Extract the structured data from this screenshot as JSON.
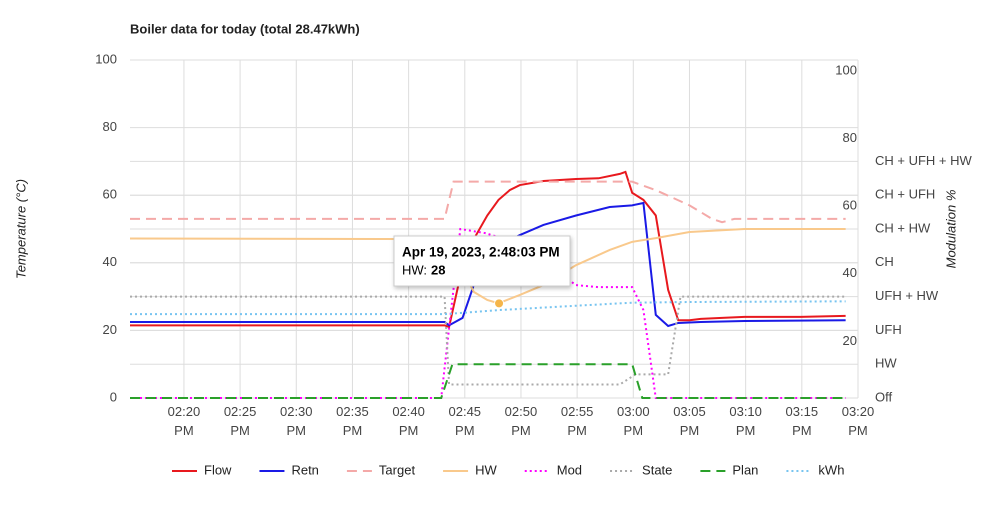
{
  "chart_data": {
    "type": "line",
    "title": "Boiler data for today (total 28.47kWh)",
    "y_label": "Temperature (°C)",
    "y2_label": "Modulation %",
    "xlim": [
      855.2,
      920
    ],
    "xticks": [
      {
        "value": 860,
        "label": "02:20 PM"
      },
      {
        "value": 865,
        "label": "02:25 PM"
      },
      {
        "value": 870,
        "label": "02:30 PM"
      },
      {
        "value": 875,
        "label": "02:35 PM"
      },
      {
        "value": 880,
        "label": "02:40 PM"
      },
      {
        "value": 885,
        "label": "02:45 PM"
      },
      {
        "value": 890,
        "label": "02:50 PM"
      },
      {
        "value": 895,
        "label": "02:55 PM"
      },
      {
        "value": 900,
        "label": "03:00 PM"
      },
      {
        "value": 905,
        "label": "03:05 PM"
      },
      {
        "value": 910,
        "label": "03:10 PM"
      },
      {
        "value": 915,
        "label": "03:15 PM"
      },
      {
        "value": 920,
        "label": "03:20 PM"
      }
    ],
    "ylim": [
      0,
      100
    ],
    "yticks": [
      0,
      20,
      40,
      60,
      80,
      100
    ],
    "y2lim": [
      0,
      100
    ],
    "y2ticks": [
      20,
      40,
      60,
      80,
      100
    ],
    "y3lim": [
      0,
      10
    ],
    "y3ticks": [
      {
        "value": 0,
        "label": "Off"
      },
      {
        "value": 1,
        "label": "HW"
      },
      {
        "value": 2,
        "label": "UFH"
      },
      {
        "value": 3,
        "label": "UFH + HW"
      },
      {
        "value": 4,
        "label": "CH"
      },
      {
        "value": 5,
        "label": "CH + HW"
      },
      {
        "value": 6,
        "label": "CH + UFH"
      },
      {
        "value": 7,
        "label": "CH + UFH + HW"
      }
    ],
    "grid": true,
    "legend": "bottom",
    "series": [
      {
        "name": "Flow",
        "color": "#e8191e",
        "dash": "solid",
        "x": [
          855.2,
          883.2,
          883.6,
          884.8,
          885.8,
          887.0,
          888.0,
          889.0,
          889.9,
          892.0,
          894.9,
          896.9,
          898.8,
          899.3,
          899.9,
          900.9,
          902.0,
          903.1,
          904.0,
          905.0,
          906.0,
          907.9,
          909.9,
          914.9,
          918.9
        ],
        "values": [
          21.5,
          21.5,
          21,
          39,
          47,
          54,
          58.6,
          61.5,
          63,
          64.2,
          64.8,
          65,
          66.3,
          66.9,
          60.7,
          58.6,
          54,
          32,
          23,
          23,
          23.4,
          23.7,
          24,
          24,
          24.3
        ]
      },
      {
        "name": "Retn",
        "color": "#1a1ae6",
        "dash": "solid",
        "x": [
          855.2,
          883.2,
          883.6,
          884.8,
          885.8,
          886.8,
          888.0,
          889.9,
          892.0,
          894.9,
          897.9,
          899.9,
          900.9,
          902.0,
          903.1,
          904.0,
          906.0,
          909.9,
          918.9
        ],
        "values": [
          22.5,
          22.5,
          21.5,
          23.7,
          33.4,
          42.3,
          45,
          48.2,
          51.2,
          54,
          56.5,
          57,
          57.7,
          24.6,
          21.3,
          22.2,
          22.5,
          22.8,
          23
        ]
      },
      {
        "name": "Target",
        "color": "#f4a9a8",
        "dash": "dashed",
        "x": [
          855.2,
          883.2,
          884.0,
          899.9,
          902.0,
          905.0,
          907.0,
          907.9,
          909.0,
          918.9
        ],
        "values": [
          53,
          53,
          64,
          64,
          61.5,
          57,
          53,
          52,
          53,
          53
        ]
      },
      {
        "name": "HW",
        "color": "#f9c98c",
        "dash": "solid",
        "x": [
          855.2,
          883.2,
          883.9,
          884.8,
          885.8,
          887.0,
          888.0,
          889.9,
          892.0,
          894.9,
          897.9,
          899.9,
          902.0,
          905.0,
          909.9,
          918.9
        ],
        "values": [
          47.2,
          47,
          45,
          38,
          31.4,
          29,
          28,
          30.5,
          33.4,
          39.3,
          43.8,
          46.2,
          47.3,
          49.1,
          50,
          50
        ]
      },
      {
        "name": "Mod",
        "color": "#ff00ff",
        "dash": "dotted",
        "axis": "y2",
        "x": [
          855.2,
          882.9,
          884.6,
          886.8,
          888.0,
          889.9,
          892.0,
          893.0,
          894.9,
          896.9,
          899.9,
          900.9,
          902.0,
          918.9
        ],
        "values": [
          0,
          0,
          50,
          48.8,
          47.6,
          46.7,
          42.6,
          37.9,
          33.4,
          32.8,
          32.8,
          26,
          0,
          0
        ]
      },
      {
        "name": "State",
        "color": "#aaaaaa",
        "dash": "dotted",
        "axis": "y3",
        "x": [
          855.2,
          883.2,
          883.6,
          898.8,
          900.2,
          903.1,
          904.2,
          918.9
        ],
        "values": [
          3,
          3,
          0.4,
          0.4,
          0.7,
          0.7,
          3,
          3
        ]
      },
      {
        "name": "Plan",
        "color": "#2aa02a",
        "dash": "dashed",
        "axis": "y3",
        "x": [
          855.2,
          882.9,
          883.9,
          899.9,
          900.8,
          918.9
        ],
        "values": [
          0,
          0,
          1,
          1,
          0,
          0
        ]
      },
      {
        "name": "kWh",
        "color": "#77c4f0",
        "dash": "dotted",
        "x": [
          855.2,
          883.2,
          888.0,
          894.9,
          899.9,
          905.0,
          918.9
        ],
        "values": [
          24.8,
          24.8,
          26,
          27.3,
          28.2,
          28.4,
          28.6
        ]
      }
    ],
    "tooltip": {
      "title": "Apr 19, 2023, 2:48:03 PM",
      "label": "HW:",
      "value": 28,
      "x": 888.05
    }
  }
}
